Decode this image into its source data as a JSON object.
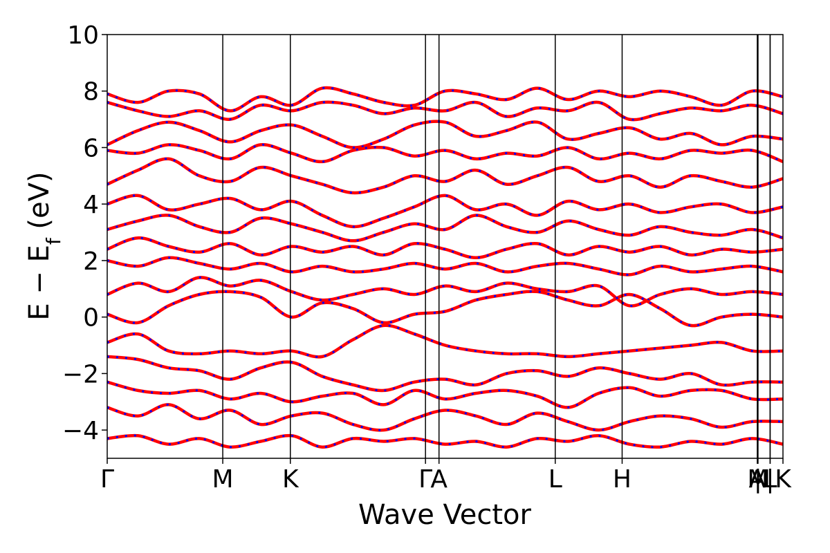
{
  "chart_data": {
    "type": "line",
    "xlabel": "Wave Vector",
    "ylabel": "E − E_f (eV)",
    "ylabel_main": "E − E",
    "ylabel_sub": "f",
    "ylabel_tail": " (eV)",
    "ylim": [
      -5,
      10
    ],
    "yticks": [
      -4,
      -2,
      0,
      2,
      4,
      6,
      8,
      10
    ],
    "ytick_labels": [
      "−4",
      "−2",
      "0",
      "2",
      "4",
      "6",
      "8",
      "10"
    ],
    "xlim": [
      0,
      10
    ],
    "high_symmetry_points": [
      {
        "label": "Γ",
        "x": 0.0
      },
      {
        "label": "M",
        "x": 1.71
      },
      {
        "label": "K",
        "x": 2.71
      },
      {
        "label": "Γ",
        "x": 4.71
      },
      {
        "label": "A",
        "x": 4.91
      },
      {
        "label": "L",
        "x": 6.63
      },
      {
        "label": "H",
        "x": 7.62
      },
      {
        "label": "A",
        "x": 9.62
      },
      {
        "label": "M",
        "x": 9.63
      },
      {
        "label": "|",
        "x": 9.63
      },
      {
        "label": "L",
        "x": 9.81
      },
      {
        "label": "|",
        "x": 9.81
      },
      {
        "label": "K",
        "x": 10.0
      }
    ],
    "series": [
      {
        "name": "",
        "color": "#ff0000",
        "style": "solid"
      },
      {
        "name": "",
        "color": "#0000ff",
        "style": "dotted"
      }
    ],
    "bands": [
      [
        7.9,
        7.6,
        8.0,
        7.9,
        7.3,
        7.8,
        7.5,
        8.1,
        7.9,
        7.6,
        7.5,
        8.0,
        7.9,
        7.7,
        8.1,
        7.7,
        8.0,
        7.8,
        8.0,
        7.8,
        7.5,
        8.0,
        7.8
      ],
      [
        7.6,
        7.3,
        7.1,
        7.3,
        7.0,
        7.5,
        7.3,
        7.6,
        7.5,
        7.2,
        7.4,
        7.3,
        7.6,
        7.1,
        7.4,
        7.3,
        7.6,
        7.0,
        7.2,
        7.4,
        7.3,
        7.5,
        7.2
      ],
      [
        6.1,
        6.6,
        6.9,
        6.6,
        6.2,
        6.6,
        6.8,
        6.4,
        6.0,
        6.3,
        6.8,
        6.9,
        6.4,
        6.6,
        6.9,
        6.3,
        6.5,
        6.7,
        6.3,
        6.5,
        6.1,
        6.4,
        6.3
      ],
      [
        5.9,
        5.8,
        6.1,
        5.9,
        5.6,
        6.1,
        5.8,
        5.5,
        5.9,
        6.0,
        5.7,
        5.9,
        5.6,
        5.8,
        5.7,
        6.0,
        5.6,
        5.8,
        5.6,
        5.9,
        5.8,
        5.9,
        5.5
      ],
      [
        4.7,
        5.2,
        5.6,
        5.0,
        4.8,
        5.3,
        5.0,
        4.7,
        4.4,
        4.6,
        5.0,
        4.8,
        5.2,
        4.7,
        5.0,
        5.3,
        4.8,
        5.0,
        4.6,
        5.0,
        4.8,
        4.6,
        4.9
      ],
      [
        4.0,
        4.3,
        3.8,
        4.0,
        4.2,
        3.8,
        4.1,
        3.6,
        3.2,
        3.5,
        3.9,
        4.3,
        3.8,
        4.0,
        3.6,
        4.1,
        3.8,
        4.0,
        3.7,
        3.9,
        4.0,
        3.7,
        3.9
      ],
      [
        3.1,
        3.4,
        3.6,
        3.2,
        3.0,
        3.5,
        3.3,
        3.0,
        2.7,
        3.0,
        3.3,
        3.1,
        3.6,
        3.2,
        3.0,
        3.4,
        3.1,
        2.9,
        3.2,
        3.0,
        2.9,
        3.1,
        2.8
      ],
      [
        2.4,
        2.8,
        2.5,
        2.3,
        2.6,
        2.2,
        2.5,
        2.3,
        2.5,
        2.2,
        2.6,
        2.4,
        2.1,
        2.4,
        2.6,
        2.2,
        2.5,
        2.3,
        2.5,
        2.2,
        2.4,
        2.3,
        2.4
      ],
      [
        2.0,
        1.8,
        2.1,
        1.9,
        1.7,
        1.9,
        1.6,
        1.8,
        1.6,
        1.7,
        1.9,
        1.7,
        1.9,
        1.6,
        1.8,
        1.9,
        1.7,
        1.5,
        1.8,
        1.6,
        1.7,
        1.8,
        1.6
      ],
      [
        0.8,
        1.2,
        0.9,
        1.4,
        1.1,
        1.3,
        0.9,
        0.6,
        0.8,
        1.0,
        0.8,
        1.1,
        0.9,
        1.2,
        1.0,
        0.9,
        1.1,
        0.4,
        0.8,
        1.0,
        0.8,
        0.9,
        0.8
      ],
      [
        0.1,
        -0.2,
        0.4,
        0.8,
        0.9,
        0.7,
        0.0,
        0.5,
        0.3,
        -0.2,
        0.1,
        0.2,
        0.6,
        0.8,
        0.9,
        0.6,
        0.4,
        0.8,
        0.3,
        -0.3,
        0.0,
        0.1,
        0.0
      ],
      [
        -0.9,
        -0.6,
        -1.2,
        -1.3,
        -1.2,
        -1.3,
        -1.2,
        -1.4,
        -0.8,
        -0.3,
        -0.6,
        -1.0,
        -1.2,
        -1.3,
        -1.3,
        -1.4,
        -1.3,
        -1.2,
        -1.1,
        -1.0,
        -0.9,
        -1.2,
        -1.2
      ],
      [
        -1.4,
        -1.5,
        -1.8,
        -1.9,
        -2.2,
        -1.8,
        -1.6,
        -2.1,
        -2.4,
        -2.6,
        -2.3,
        -2.2,
        -2.4,
        -2.0,
        -1.9,
        -2.1,
        -1.8,
        -2.0,
        -2.2,
        -2.0,
        -2.4,
        -2.3,
        -2.3
      ],
      [
        -2.3,
        -2.6,
        -2.7,
        -2.6,
        -2.9,
        -2.7,
        -3.0,
        -2.8,
        -2.7,
        -3.1,
        -2.6,
        -2.9,
        -2.7,
        -2.6,
        -2.8,
        -3.2,
        -2.7,
        -2.5,
        -2.8,
        -2.6,
        -2.6,
        -2.9,
        -2.9
      ],
      [
        -3.2,
        -3.5,
        -3.1,
        -3.6,
        -3.3,
        -3.8,
        -3.5,
        -3.4,
        -3.8,
        -4.0,
        -3.6,
        -3.3,
        -3.5,
        -3.8,
        -3.4,
        -3.7,
        -4.0,
        -3.7,
        -3.5,
        -3.6,
        -3.9,
        -3.7,
        -3.7
      ],
      [
        -4.3,
        -4.2,
        -4.5,
        -4.3,
        -4.6,
        -4.4,
        -4.2,
        -4.6,
        -4.3,
        -4.4,
        -4.3,
        -4.5,
        -4.4,
        -4.6,
        -4.3,
        -4.4,
        -4.2,
        -4.5,
        -4.6,
        -4.4,
        -4.5,
        -4.3,
        -4.5
      ]
    ]
  }
}
